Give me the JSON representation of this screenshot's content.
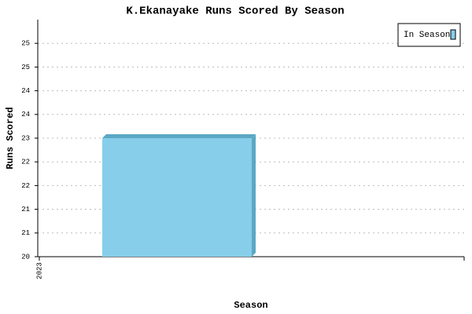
{
  "chart_data": {
    "type": "bar3d",
    "title": "K.Ekanayake Runs Scored By Season",
    "xlabel": "Season",
    "ylabel": "Runs Scored",
    "categories": [
      "2023"
    ],
    "series": [
      {
        "name": "In Season",
        "color": "#87ceeb",
        "values": [
          23
        ]
      }
    ],
    "ylim": [
      20,
      26
    ],
    "yticks": [
      20,
      {
        "value": 20.6,
        "label": "21"
      },
      {
        "value": 21.2,
        "label": "21"
      },
      {
        "value": 21.8,
        "label": "22"
      },
      {
        "value": 22.4,
        "label": "22"
      },
      23,
      {
        "value": 23.6,
        "label": "24"
      },
      {
        "value": 24.2,
        "label": "24"
      },
      {
        "value": 24.8,
        "label": "25"
      },
      {
        "value": 25.4,
        "label": "25"
      }
    ],
    "grid": true,
    "legend": "upper right"
  }
}
